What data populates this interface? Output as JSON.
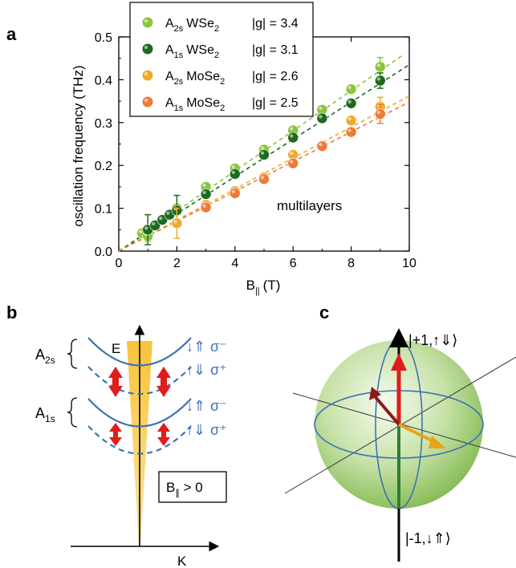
{
  "panels": {
    "a": "a",
    "b": "b",
    "c": "c"
  },
  "chart_data": {
    "type": "scatter",
    "xlabel_base": "B",
    "xlabel_sub": "||",
    "xlabel_unit": "(T)",
    "ylabel": "oscillation frequency (THz)",
    "xlim": [
      0,
      10
    ],
    "ylim": [
      0,
      0.5
    ],
    "xticks": [
      "0",
      "2",
      "4",
      "6",
      "8",
      "10"
    ],
    "yticks": [
      "0.0",
      "0.1",
      "0.2",
      "0.3",
      "0.4",
      "0.5"
    ],
    "annotation": "multilayers",
    "legend_position": "top-left",
    "series": [
      {
        "name": "A2s WSe2 |g| = 3.4",
        "legend": {
          "state": "A",
          "state_sub": "2s",
          "material": "WSe",
          "material_sub": "2",
          "g": "|g| = 3.4"
        },
        "color": "#8cc43c",
        "fit_slope": 0.0468,
        "x": [
          0.8,
          1.0,
          2.0,
          3.0,
          4.0,
          5.0,
          6.0,
          7.0,
          8.0,
          9.0
        ],
        "y": [
          0.042,
          0.035,
          0.1,
          0.15,
          0.193,
          0.237,
          0.282,
          0.33,
          0.378,
          0.43
        ],
        "err": [
          0.0,
          0.012,
          0.0,
          0.0,
          0.0,
          0.0,
          0.0,
          0.0,
          0.0,
          0.022
        ]
      },
      {
        "name": "A1s WSe2 |g| = 3.1",
        "legend": {
          "state": "A",
          "state_sub": "1s",
          "material": "WSe",
          "material_sub": "2",
          "g": "|g| = 3.1"
        },
        "color": "#1c6a1e",
        "fit_slope": 0.0435,
        "x": [
          1.0,
          1.25,
          1.5,
          1.75,
          2.0,
          3.0,
          4.0,
          5.0,
          6.0,
          7.0,
          8.0,
          9.0
        ],
        "y": [
          0.05,
          0.06,
          0.073,
          0.085,
          0.095,
          0.133,
          0.18,
          0.225,
          0.265,
          0.31,
          0.345,
          0.398
        ],
        "err": [
          0.035,
          0.0,
          0.0,
          0.0,
          0.035,
          0.0,
          0.0,
          0.0,
          0.0,
          0.0,
          0.0,
          0.018
        ]
      },
      {
        "name": "A2s MoSe2 |g| = 2.6",
        "legend": {
          "state": "A",
          "state_sub": "2s",
          "material": "MoSe",
          "material_sub": "2",
          "g": "|g| = 2.6"
        },
        "color": "#f0aa2a",
        "fit_slope": 0.0362,
        "x": [
          2.0,
          3.0,
          4.0,
          5.0,
          6.0,
          7.0,
          8.0,
          9.0
        ],
        "y": [
          0.065,
          0.108,
          0.14,
          0.172,
          0.225,
          0.245,
          0.305,
          0.337
        ],
        "err": [
          0.035,
          0.0,
          0.0,
          0.0,
          0.0,
          0.0,
          0.0,
          0.022
        ]
      },
      {
        "name": "A1s MoSe2 |g| = 2.5",
        "legend": {
          "state": "A",
          "state_sub": "1s",
          "material": "MoSe",
          "material_sub": "2",
          "g": "|g| = 2.5"
        },
        "color": "#ee7a36",
        "fit_slope": 0.0348,
        "x": [
          3.0,
          4.0,
          5.0,
          6.0,
          7.0,
          8.0,
          9.0
        ],
        "y": [
          0.102,
          0.135,
          0.168,
          0.205,
          0.245,
          0.278,
          0.32
        ],
        "err": [
          0.0,
          0.0,
          0.0,
          0.0,
          0.0,
          0.0,
          0.022
        ]
      }
    ]
  },
  "panel_b": {
    "labels": {
      "A": "A",
      "a2s_sub": "2s",
      "a1s_sub": "1s",
      "E": "E",
      "K": "K",
      "sigma_minus": "σ⁻",
      "sigma_plus": "σ⁺",
      "field_base": "B",
      "field_sub": "∥",
      "field_rest": " > 0",
      "spin_down_up": "↓⇑",
      "spin_up_down": "↑⇓"
    },
    "colors": {
      "band": "#3d72b4",
      "arrow": "#e01c1c",
      "cone": "#f7c740"
    }
  },
  "panel_c": {
    "labels": {
      "top": "|+1,↑⇓⟩",
      "bottom": "|-1,↓⇑⟩"
    },
    "colors": {
      "sphere": "#a7d07a",
      "circle": "#3d72b4",
      "vec_up": "#e01c1c",
      "vec_tilt": "#8c1a1a",
      "vec_side": "#e8a418",
      "axis_down": "#2e7d32"
    }
  }
}
